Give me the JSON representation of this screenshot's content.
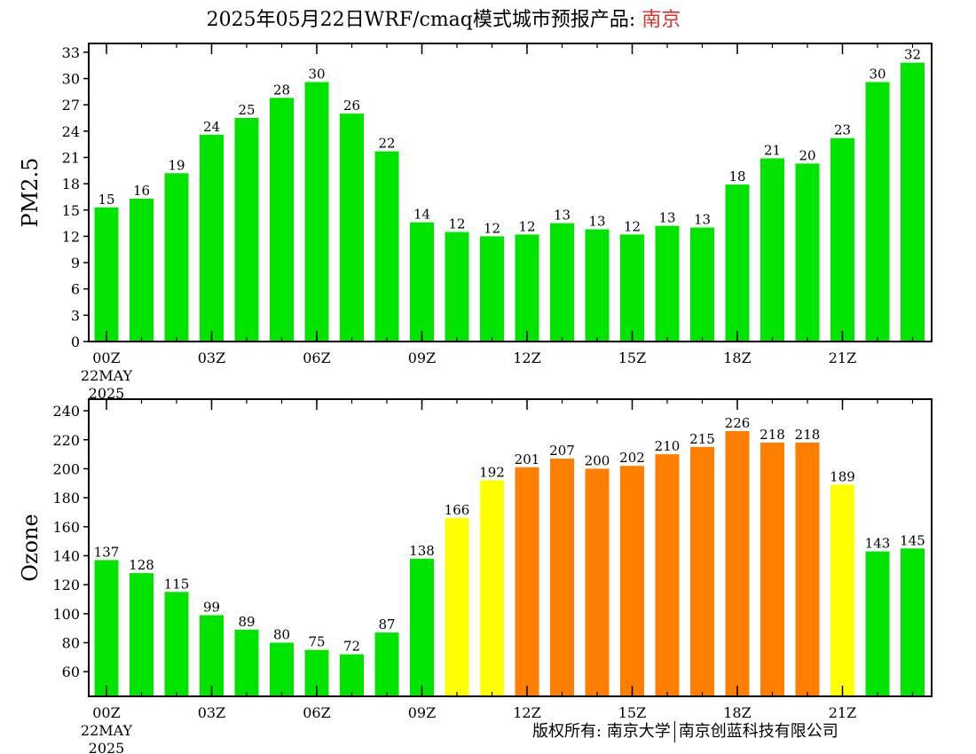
{
  "title": {
    "main": "2025年05月22日WRF/cmaq模式城市预报产品: ",
    "city": "南京"
  },
  "copyright": {
    "left": "版权所有: 南京大学",
    "right": "南京创蓝科技有限公司"
  },
  "colors": {
    "good": "#00e400",
    "moderate": "#ffff00",
    "unhealthy_sensitive": "#ff7e00",
    "title_city": "#e0322b"
  },
  "chart_data": [
    {
      "type": "bar",
      "ylabel": "PM2.5",
      "ylim": [
        0,
        34
      ],
      "yticks": [
        0,
        3,
        6,
        9,
        12,
        15,
        18,
        21,
        24,
        27,
        30,
        33
      ],
      "x_tick_labels": [
        "00Z",
        "03Z",
        "06Z",
        "09Z",
        "12Z",
        "15Z",
        "18Z",
        "21Z"
      ],
      "x_tick_hours": [
        0,
        3,
        6,
        9,
        12,
        15,
        18,
        21
      ],
      "date_label": [
        "22MAY",
        "2025"
      ],
      "hours": [
        0,
        1,
        2,
        3,
        4,
        5,
        6,
        7,
        8,
        9,
        10,
        11,
        12,
        13,
        14,
        15,
        16,
        17,
        18,
        19,
        20,
        21,
        22,
        23
      ],
      "values": [
        15.3,
        16.3,
        19.2,
        23.6,
        25.5,
        27.8,
        29.6,
        26.0,
        21.7,
        13.6,
        12.5,
        12.0,
        12.2,
        13.5,
        12.8,
        12.2,
        13.2,
        13.0,
        17.9,
        20.9,
        20.3,
        23.2,
        29.6,
        31.8
      ],
      "value_labels": [
        "15",
        "16",
        "19",
        "24",
        "25",
        "28",
        "30",
        "26",
        "22",
        "14",
        "12",
        "12",
        "12",
        "13",
        "13",
        "12",
        "13",
        "13",
        "18",
        "21",
        "20",
        "23",
        "30",
        "32"
      ],
      "bar_colors": [
        "good",
        "good",
        "good",
        "good",
        "good",
        "good",
        "good",
        "good",
        "good",
        "good",
        "good",
        "good",
        "good",
        "good",
        "good",
        "good",
        "good",
        "good",
        "good",
        "good",
        "good",
        "good",
        "good",
        "good"
      ]
    },
    {
      "type": "bar",
      "ylabel": "Ozone",
      "ylim": [
        43,
        248
      ],
      "yticks": [
        60,
        80,
        100,
        120,
        140,
        160,
        180,
        200,
        220,
        240
      ],
      "x_tick_labels": [
        "00Z",
        "03Z",
        "06Z",
        "09Z",
        "12Z",
        "15Z",
        "18Z",
        "21Z"
      ],
      "x_tick_hours": [
        0,
        3,
        6,
        9,
        12,
        15,
        18,
        21
      ],
      "date_label": [
        "22MAY",
        "2025"
      ],
      "hours": [
        0,
        1,
        2,
        3,
        4,
        5,
        6,
        7,
        8,
        9,
        10,
        11,
        12,
        13,
        14,
        15,
        16,
        17,
        18,
        19,
        20,
        21,
        22,
        23
      ],
      "values": [
        137,
        128,
        115,
        99,
        89,
        80,
        75,
        72,
        87,
        138,
        166,
        192,
        201,
        207,
        200,
        202,
        210,
        215,
        226,
        218,
        218,
        189,
        143,
        145
      ],
      "value_labels": [
        "137",
        "128",
        "115",
        "99",
        "89",
        "80",
        "75",
        "72",
        "87",
        "138",
        "166",
        "192",
        "201",
        "207",
        "200",
        "202",
        "210",
        "215",
        "226",
        "218",
        "218",
        "189",
        "143",
        "145"
      ],
      "bar_colors": [
        "good",
        "good",
        "good",
        "good",
        "good",
        "good",
        "good",
        "good",
        "good",
        "good",
        "moderate",
        "moderate",
        "unhealthy_sensitive",
        "unhealthy_sensitive",
        "unhealthy_sensitive",
        "unhealthy_sensitive",
        "unhealthy_sensitive",
        "unhealthy_sensitive",
        "unhealthy_sensitive",
        "unhealthy_sensitive",
        "unhealthy_sensitive",
        "moderate",
        "good",
        "good"
      ]
    }
  ]
}
